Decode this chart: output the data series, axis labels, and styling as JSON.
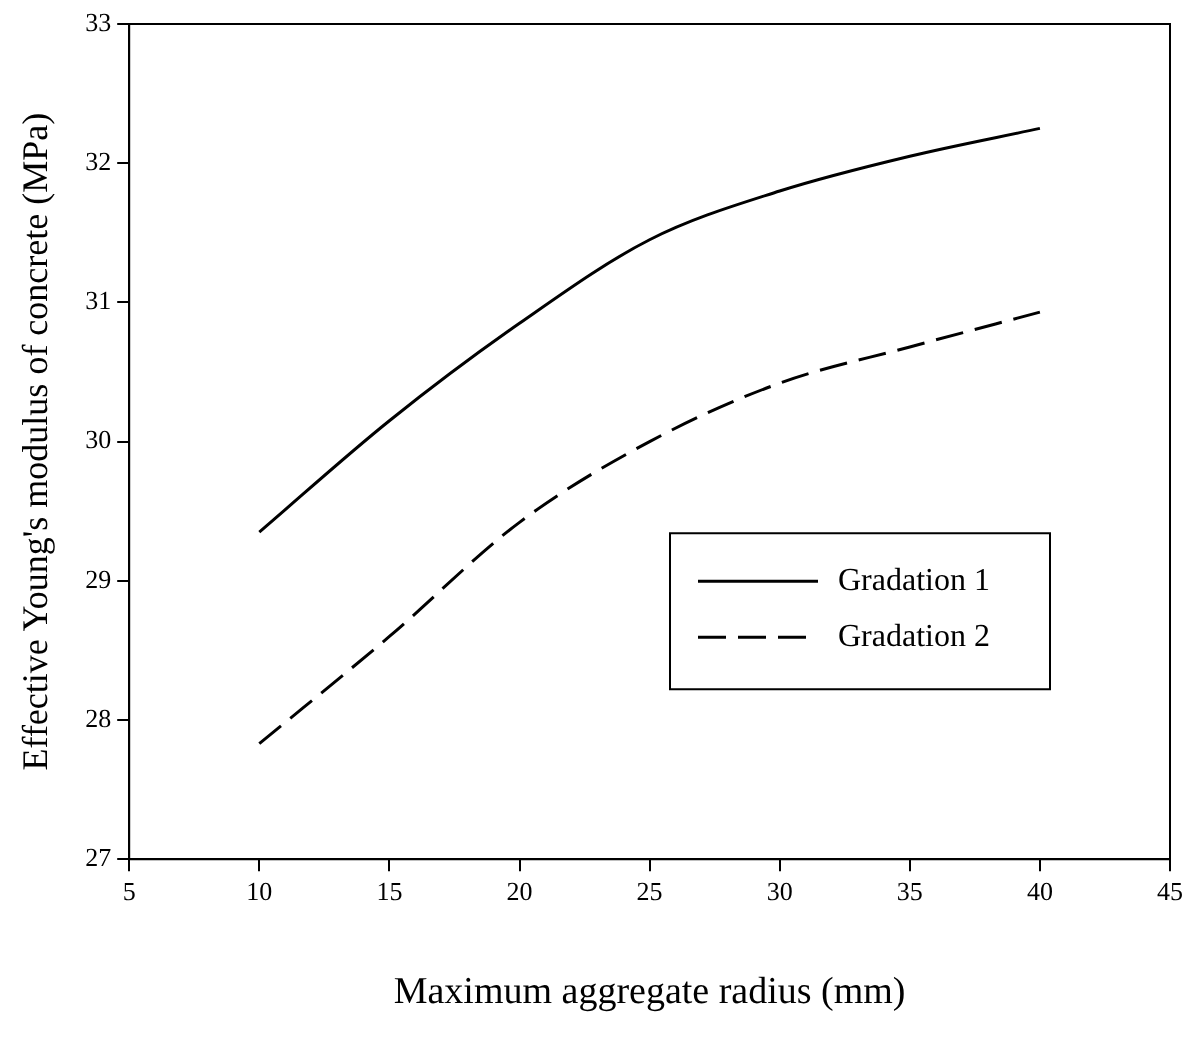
{
  "chart_data": {
    "type": "line",
    "xlabel": "Maximum aggregate radius (mm)",
    "ylabel": "Effective Young's modulus of concrete (MPa)",
    "x": [
      10,
      15,
      20,
      25,
      30,
      35,
      40
    ],
    "series": [
      {
        "name": "Gradation 1",
        "color": "#000000",
        "line_style": "solid",
        "values": [
          29.35,
          30.15,
          30.85,
          31.45,
          31.8,
          32.05,
          32.25
        ]
      },
      {
        "name": "Gradation 2",
        "color": "#000000",
        "line_style": "dashed",
        "values": [
          27.83,
          28.6,
          29.42,
          30.0,
          30.42,
          30.68,
          30.93
        ]
      }
    ],
    "xlim": [
      5,
      45
    ],
    "xticks": [
      5,
      10,
      15,
      20,
      25,
      30,
      35,
      40,
      45
    ],
    "ylim": [
      27,
      33
    ],
    "yticks": [
      27,
      28,
      29,
      30,
      31,
      32,
      33
    ],
    "grid": false,
    "legend": "bottom right",
    "marker": "none"
  }
}
